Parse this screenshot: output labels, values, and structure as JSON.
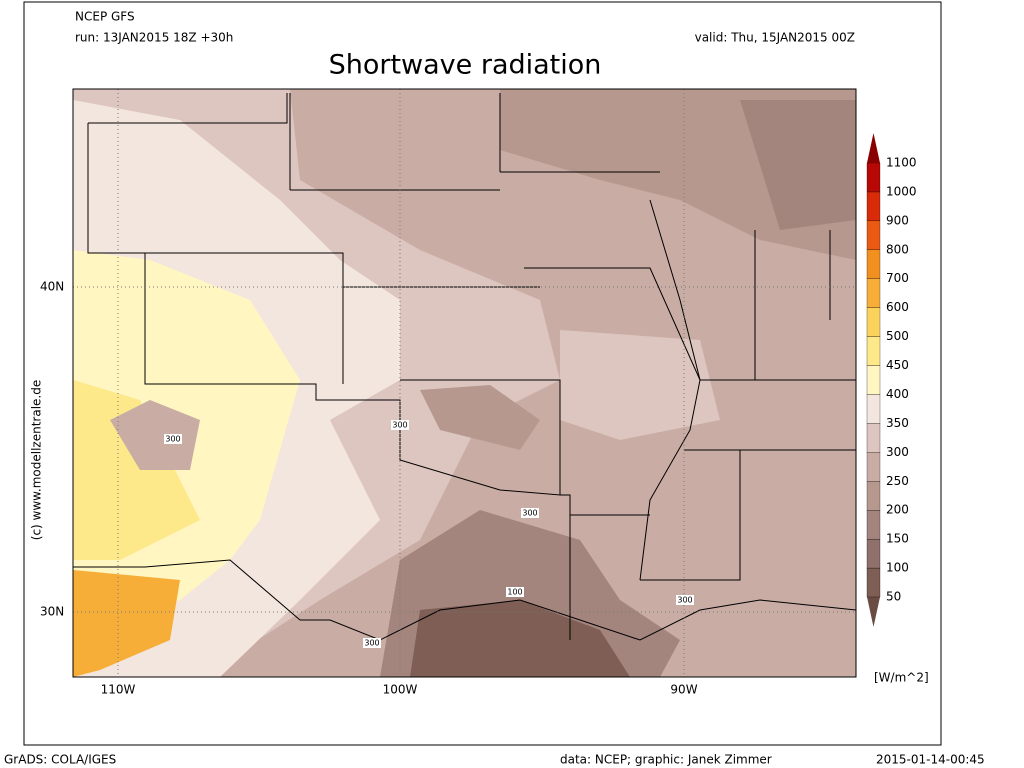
{
  "header": {
    "model": "NCEP GFS",
    "run": "run: 13JAN2015 18Z +30h",
    "valid": "valid: Thu, 15JAN2015 00Z",
    "title": "Shortwave radiation"
  },
  "map": {
    "lat_labels": [
      "40N",
      "30N"
    ],
    "lon_labels": [
      "110W",
      "100W",
      "90W"
    ],
    "contour_labels": [
      300,
      300,
      300,
      300,
      300,
      100
    ]
  },
  "colorbar": {
    "levels": [
      50,
      100,
      150,
      200,
      250,
      300,
      350,
      400,
      450,
      500,
      600,
      700,
      800,
      900,
      1000,
      1100
    ],
    "colors": [
      "#6b4c44",
      "#7e5e55",
      "#90706a",
      "#a3857e",
      "#b6988f",
      "#c9aca4",
      "#dcc6bf",
      "#f3e6de",
      "#fff6c2",
      "#fde98a",
      "#fbd35c",
      "#f6ae38",
      "#f18f1f",
      "#eb5a12",
      "#d92a0a",
      "#b80806",
      "#8a0000"
    ],
    "unit": "[W/m^2]"
  },
  "footer": {
    "software": "GrADS: COLA/IGES",
    "credit": "data: NCEP; graphic: Janek Zimmer",
    "timestamp": "2015-01-14-00:45",
    "copyright": "(c) www.modellzentrale.de"
  }
}
